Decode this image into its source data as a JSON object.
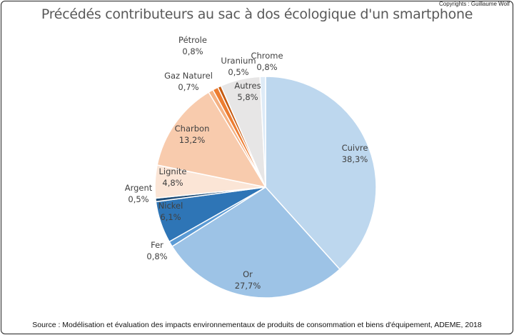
{
  "copyright": "Copyrights : Guillaume Wolf",
  "source": "Source : Modélisation et évaluation des impacts environnementaux de produits de consommation et biens d'équipement, ADEME, 2018",
  "chart_data": {
    "type": "pie",
    "title": "Précédés contributeurs au sac à dos écologique d'un smartphone",
    "start_angle": "top, clockwise",
    "slices": [
      {
        "label": "Cuivre",
        "value": 38.3,
        "text": "38,3%",
        "color": "#bdd7ee"
      },
      {
        "label": "Or",
        "value": 27.7,
        "text": "27,7%",
        "color": "#9dc3e6"
      },
      {
        "label": "Fer",
        "value": 0.8,
        "text": "0,8%",
        "color": "#5b9bd5"
      },
      {
        "label": "Nickel",
        "value": 6.1,
        "text": "6,1%",
        "color": "#2e75b6"
      },
      {
        "label": "Argent",
        "value": 0.5,
        "text": "0,5%",
        "color": "#1f4e79"
      },
      {
        "label": "Lignite",
        "value": 4.8,
        "text": "4,8%",
        "color": "#fbe5d6"
      },
      {
        "label": "Charbon",
        "value": 13.2,
        "text": "13,2%",
        "color": "#f8cbad"
      },
      {
        "label": "Gaz Naturel",
        "value": 0.7,
        "text": "0,7%",
        "color": "#f4b183"
      },
      {
        "label": "Pétrole",
        "value": 0.8,
        "text": "0,8%",
        "color": "#ed7d31"
      },
      {
        "label": "Uranium",
        "value": 0.5,
        "text": "0,5%",
        "color": "#c55a11"
      },
      {
        "label": "Autres",
        "value": 5.8,
        "text": "5,8%",
        "color": "#e7e6e6"
      },
      {
        "label": "Chrome",
        "value": 0.8,
        "text": "0,8%",
        "color": "#deebf7"
      }
    ]
  }
}
